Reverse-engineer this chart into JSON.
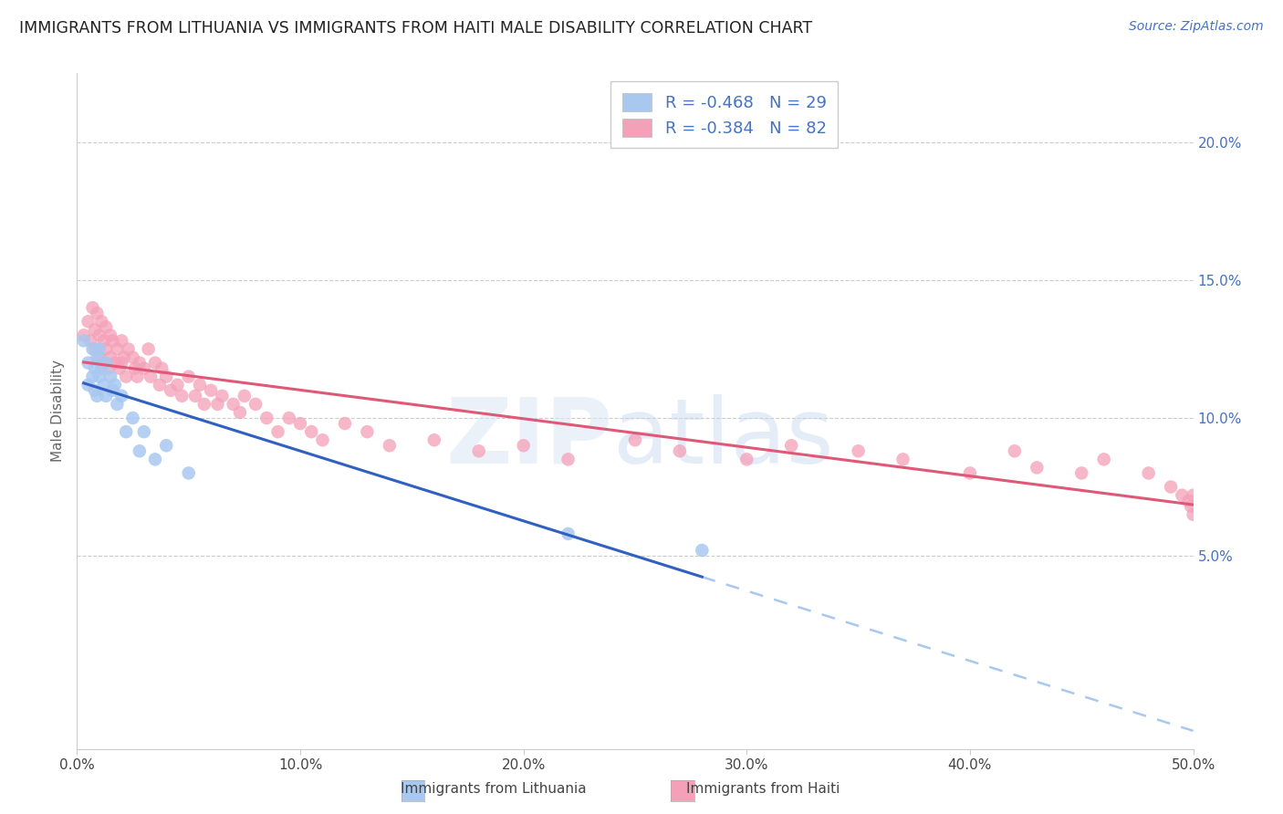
{
  "title": "IMMIGRANTS FROM LITHUANIA VS IMMIGRANTS FROM HAITI MALE DISABILITY CORRELATION CHART",
  "source": "Source: ZipAtlas.com",
  "ylabel": "Male Disability",
  "color_blue": "#a8c8f0",
  "color_pink": "#f4a0b8",
  "line_blue": "#3060c0",
  "line_pink": "#e05878",
  "line_dash_color": "#a8c8f0",
  "y_ticks": [
    0.05,
    0.1,
    0.15,
    0.2
  ],
  "y_tick_labels": [
    "5.0%",
    "10.0%",
    "15.0%",
    "20.0%"
  ],
  "xlim": [
    0.0,
    0.5
  ],
  "ylim": [
    -0.02,
    0.225
  ],
  "lith_R": -0.468,
  "lith_N": 29,
  "haiti_R": -0.384,
  "haiti_N": 82,
  "lith_x": [
    0.003,
    0.005,
    0.005,
    0.007,
    0.007,
    0.008,
    0.008,
    0.009,
    0.009,
    0.01,
    0.01,
    0.011,
    0.012,
    0.013,
    0.013,
    0.015,
    0.016,
    0.017,
    0.018,
    0.02,
    0.022,
    0.025,
    0.028,
    0.03,
    0.035,
    0.04,
    0.05,
    0.22,
    0.28
  ],
  "lith_y": [
    0.128,
    0.12,
    0.112,
    0.125,
    0.115,
    0.118,
    0.11,
    0.122,
    0.108,
    0.125,
    0.115,
    0.118,
    0.112,
    0.12,
    0.108,
    0.115,
    0.11,
    0.112,
    0.105,
    0.108,
    0.095,
    0.1,
    0.088,
    0.095,
    0.085,
    0.09,
    0.08,
    0.058,
    0.052
  ],
  "haiti_x": [
    0.003,
    0.005,
    0.006,
    0.007,
    0.008,
    0.008,
    0.009,
    0.01,
    0.01,
    0.011,
    0.012,
    0.012,
    0.013,
    0.013,
    0.014,
    0.015,
    0.015,
    0.016,
    0.017,
    0.018,
    0.019,
    0.02,
    0.02,
    0.021,
    0.022,
    0.023,
    0.025,
    0.026,
    0.027,
    0.028,
    0.03,
    0.032,
    0.033,
    0.035,
    0.037,
    0.038,
    0.04,
    0.042,
    0.045,
    0.047,
    0.05,
    0.053,
    0.055,
    0.057,
    0.06,
    0.063,
    0.065,
    0.07,
    0.073,
    0.075,
    0.08,
    0.085,
    0.09,
    0.095,
    0.1,
    0.105,
    0.11,
    0.12,
    0.13,
    0.14,
    0.16,
    0.18,
    0.2,
    0.22,
    0.25,
    0.27,
    0.3,
    0.32,
    0.35,
    0.37,
    0.4,
    0.42,
    0.43,
    0.45,
    0.46,
    0.48,
    0.49,
    0.495,
    0.498,
    0.499,
    0.5,
    0.5
  ],
  "haiti_y": [
    0.13,
    0.135,
    0.128,
    0.14,
    0.132,
    0.125,
    0.138,
    0.13,
    0.122,
    0.135,
    0.128,
    0.12,
    0.133,
    0.125,
    0.118,
    0.13,
    0.122,
    0.128,
    0.12,
    0.125,
    0.118,
    0.128,
    0.12,
    0.122,
    0.115,
    0.125,
    0.122,
    0.118,
    0.115,
    0.12,
    0.118,
    0.125,
    0.115,
    0.12,
    0.112,
    0.118,
    0.115,
    0.11,
    0.112,
    0.108,
    0.115,
    0.108,
    0.112,
    0.105,
    0.11,
    0.105,
    0.108,
    0.105,
    0.102,
    0.108,
    0.105,
    0.1,
    0.095,
    0.1,
    0.098,
    0.095,
    0.092,
    0.098,
    0.095,
    0.09,
    0.092,
    0.088,
    0.09,
    0.085,
    0.092,
    0.088,
    0.085,
    0.09,
    0.088,
    0.085,
    0.08,
    0.088,
    0.082,
    0.08,
    0.085,
    0.08,
    0.075,
    0.072,
    0.07,
    0.068,
    0.072,
    0.065
  ]
}
